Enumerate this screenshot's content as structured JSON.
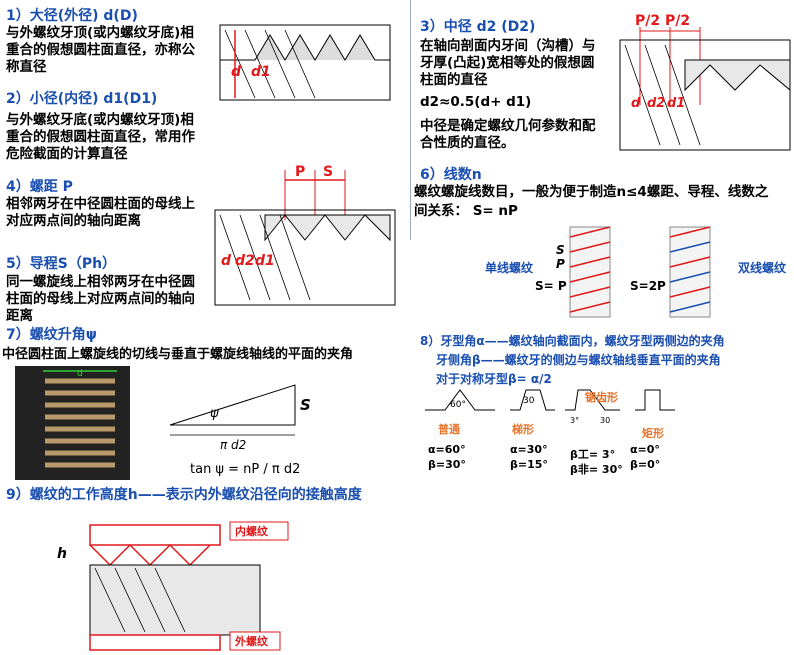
{
  "sec1": {
    "title": "1）大径(外径) d(D)",
    "body": "与外螺纹牙顶(或内螺纹牙底)相重合的假想圆柱面直径，亦称公称直径"
  },
  "sec2": {
    "title": "2）小径(内径) d1(D1)",
    "body": "与外螺纹牙底(或内螺纹牙顶)相重合的假想圆柱面直径，常用作危险截面的计算直径"
  },
  "sec3": {
    "title": "3）中径 d2 (D2)",
    "body": "在轴向剖面内牙间（沟槽）与牙厚(凸起)宽相等处的假想圆柱面的直径",
    "formula": "d2≈0.5(d+ d1)",
    "note": "中径是确定螺纹几何参数和配合性质的直径。"
  },
  "sec4": {
    "title": "4）螺距 P",
    "body": "相邻两牙在中径圆柱面的母线上对应两点间的轴向距离"
  },
  "sec5": {
    "title": "5）导程S（Ph）",
    "body": "同一螺旋线上相邻两牙在中径圆柱面的母线上对应两点间的轴向距离"
  },
  "sec6": {
    "title": "6）线数n",
    "body1": "螺纹螺旋线数目，一般为便于制造n≤4螺距、导程、线数之",
    "body2": "间关系： S= nP"
  },
  "sec7": {
    "title": "7）螺纹升角ψ",
    "body": "中径圆柱面上螺旋线的切线与垂直于螺旋线轴线的平面的夹角"
  },
  "sec8": {
    "line1": "8）牙型角α——螺纹轴向截面内，螺纹牙型两侧边的夹角",
    "line2": "牙侧角β——螺纹牙的侧边与螺纹轴线垂直平面的夹角",
    "line3": "对于对称牙型β= α/2"
  },
  "sec9": {
    "title": "9）螺纹的工作高度h——表示内外螺纹沿径向的接触高度"
  },
  "fig_labels": {
    "d": "d",
    "d1": "d1",
    "d2": "d2",
    "P": "P",
    "S": "S",
    "P2": "P/2",
    "psi": "ψ",
    "pid2": "π d2",
    "tan": "tan ψ = nP / π d2",
    "single": "单线螺纹",
    "double": "双线螺纹",
    "seq1": "S= P",
    "seq2": "S=2P",
    "p60": "60°",
    "p30": "30",
    "p3": "3°",
    "common": "普通",
    "trap": "梯形",
    "buttress": "锯齿形",
    "rect": "矩形",
    "a60": "α=60°",
    "b30": "β=30°",
    "a30": "α=30°",
    "b15": "β=15°",
    "bw3": "β工= 3°",
    "bf30": "β非= 30°",
    "a0": "α=0°",
    "b0": "β=0°",
    "inner": "内螺纹",
    "outer": "外螺纹",
    "h": "h"
  },
  "colors": {
    "heading": "#1a4fb0",
    "red": "#e0191b",
    "blue": "#1a4fb0",
    "orange": "#e8722a"
  }
}
